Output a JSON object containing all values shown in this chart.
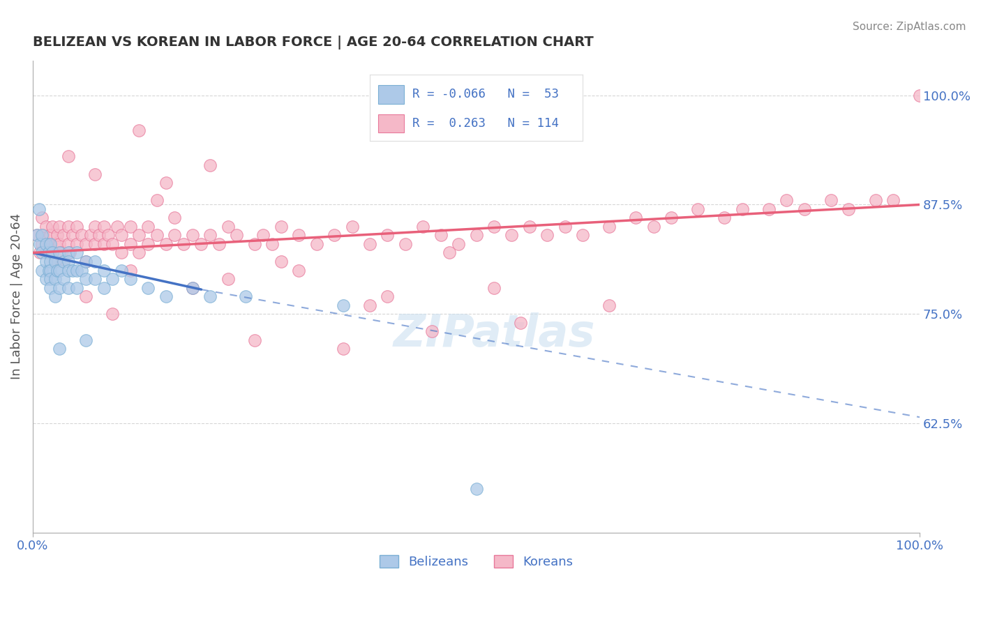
{
  "title": "BELIZEAN VS KOREAN IN LABOR FORCE | AGE 20-64 CORRELATION CHART",
  "source_text": "Source: ZipAtlas.com",
  "ylabel": "In Labor Force | Age 20-64",
  "xlim": [
    0.0,
    1.0
  ],
  "ylim": [
    0.5,
    1.04
  ],
  "yticks": [
    0.625,
    0.75,
    0.875,
    1.0
  ],
  "ytick_labels": [
    "62.5%",
    "75.0%",
    "87.5%",
    "100.0%"
  ],
  "xtick_labels": [
    "0.0%",
    "100.0%"
  ],
  "xticks": [
    0.0,
    1.0
  ],
  "belizean_color": "#adc9e8",
  "korean_color": "#f5b8c8",
  "belizean_edge": "#7aafd4",
  "korean_edge": "#e8789a",
  "title_color": "#333333",
  "axis_label_color": "#555555",
  "tick_color": "#4472c4",
  "grid_color": "#cccccc",
  "trend_blue_color": "#4472c4",
  "trend_pink_color": "#e8607a",
  "legend_label_color": "#4472c4",
  "source_color": "#888888",
  "belizean_legend_label": "Belizeans",
  "korean_legend_label": "Koreans",
  "belizean_x": [
    0.005,
    0.007,
    0.008,
    0.01,
    0.01,
    0.01,
    0.015,
    0.015,
    0.015,
    0.018,
    0.018,
    0.02,
    0.02,
    0.02,
    0.02,
    0.02,
    0.022,
    0.025,
    0.025,
    0.025,
    0.028,
    0.03,
    0.03,
    0.03,
    0.035,
    0.035,
    0.04,
    0.04,
    0.04,
    0.04,
    0.045,
    0.05,
    0.05,
    0.05,
    0.055,
    0.06,
    0.06,
    0.07,
    0.07,
    0.08,
    0.08,
    0.09,
    0.1,
    0.11,
    0.13,
    0.15,
    0.18,
    0.2,
    0.24,
    0.35,
    0.03,
    0.06,
    0.5
  ],
  "belizean_y": [
    0.84,
    0.87,
    0.83,
    0.82,
    0.84,
    0.8,
    0.83,
    0.81,
    0.79,
    0.82,
    0.8,
    0.83,
    0.81,
    0.8,
    0.79,
    0.78,
    0.82,
    0.81,
    0.79,
    0.77,
    0.8,
    0.82,
    0.8,
    0.78,
    0.81,
    0.79,
    0.82,
    0.81,
    0.8,
    0.78,
    0.8,
    0.82,
    0.8,
    0.78,
    0.8,
    0.81,
    0.79,
    0.81,
    0.79,
    0.8,
    0.78,
    0.79,
    0.8,
    0.79,
    0.78,
    0.77,
    0.78,
    0.77,
    0.77,
    0.76,
    0.71,
    0.72,
    0.55
  ],
  "korean_x": [
    0.005,
    0.008,
    0.01,
    0.01,
    0.012,
    0.015,
    0.015,
    0.018,
    0.02,
    0.02,
    0.022,
    0.025,
    0.025,
    0.028,
    0.03,
    0.03,
    0.032,
    0.035,
    0.035,
    0.04,
    0.04,
    0.042,
    0.045,
    0.05,
    0.05,
    0.055,
    0.06,
    0.06,
    0.065,
    0.07,
    0.07,
    0.075,
    0.08,
    0.08,
    0.085,
    0.09,
    0.095,
    0.1,
    0.1,
    0.11,
    0.11,
    0.12,
    0.12,
    0.13,
    0.13,
    0.14,
    0.15,
    0.16,
    0.17,
    0.18,
    0.19,
    0.2,
    0.21,
    0.22,
    0.23,
    0.25,
    0.26,
    0.27,
    0.28,
    0.3,
    0.32,
    0.34,
    0.36,
    0.38,
    0.4,
    0.42,
    0.44,
    0.46,
    0.48,
    0.5,
    0.52,
    0.54,
    0.56,
    0.58,
    0.6,
    0.62,
    0.65,
    0.68,
    0.7,
    0.72,
    0.75,
    0.78,
    0.8,
    0.83,
    0.85,
    0.87,
    0.9,
    0.92,
    0.95,
    0.97,
    0.07,
    0.12,
    0.18,
    0.09,
    0.14,
    0.04,
    0.06,
    0.11,
    0.16,
    0.22,
    0.3,
    0.4,
    0.52,
    0.65,
    0.35,
    0.45,
    0.55,
    0.47,
    0.2,
    0.28,
    0.38,
    0.15,
    0.25,
    1.0
  ],
  "korean_y": [
    0.84,
    0.82,
    0.86,
    0.83,
    0.84,
    0.85,
    0.82,
    0.83,
    0.84,
    0.82,
    0.85,
    0.83,
    0.81,
    0.84,
    0.85,
    0.83,
    0.82,
    0.84,
    0.81,
    0.85,
    0.83,
    0.82,
    0.84,
    0.85,
    0.83,
    0.84,
    0.83,
    0.81,
    0.84,
    0.85,
    0.83,
    0.84,
    0.85,
    0.83,
    0.84,
    0.83,
    0.85,
    0.84,
    0.82,
    0.85,
    0.83,
    0.84,
    0.82,
    0.83,
    0.85,
    0.84,
    0.83,
    0.84,
    0.83,
    0.84,
    0.83,
    0.84,
    0.83,
    0.85,
    0.84,
    0.83,
    0.84,
    0.83,
    0.85,
    0.84,
    0.83,
    0.84,
    0.85,
    0.83,
    0.84,
    0.83,
    0.85,
    0.84,
    0.83,
    0.84,
    0.85,
    0.84,
    0.85,
    0.84,
    0.85,
    0.84,
    0.85,
    0.86,
    0.85,
    0.86,
    0.87,
    0.86,
    0.87,
    0.87,
    0.88,
    0.87,
    0.88,
    0.87,
    0.88,
    0.88,
    0.91,
    0.96,
    0.78,
    0.75,
    0.88,
    0.93,
    0.77,
    0.8,
    0.86,
    0.79,
    0.8,
    0.77,
    0.78,
    0.76,
    0.71,
    0.73,
    0.74,
    0.82,
    0.92,
    0.81,
    0.76,
    0.9,
    0.72,
    1.0
  ],
  "trend_blue_x0": 0.0,
  "trend_blue_x1": 0.19,
  "trend_blue_y0": 0.82,
  "trend_blue_y1": 0.778,
  "trend_blue_dash_x0": 0.19,
  "trend_blue_dash_x1": 1.0,
  "trend_blue_dash_y0": 0.778,
  "trend_blue_dash_y1": 0.632,
  "trend_pink_x0": 0.0,
  "trend_pink_x1": 1.0,
  "trend_pink_y0": 0.82,
  "trend_pink_y1": 0.875,
  "background_color": "#ffffff"
}
